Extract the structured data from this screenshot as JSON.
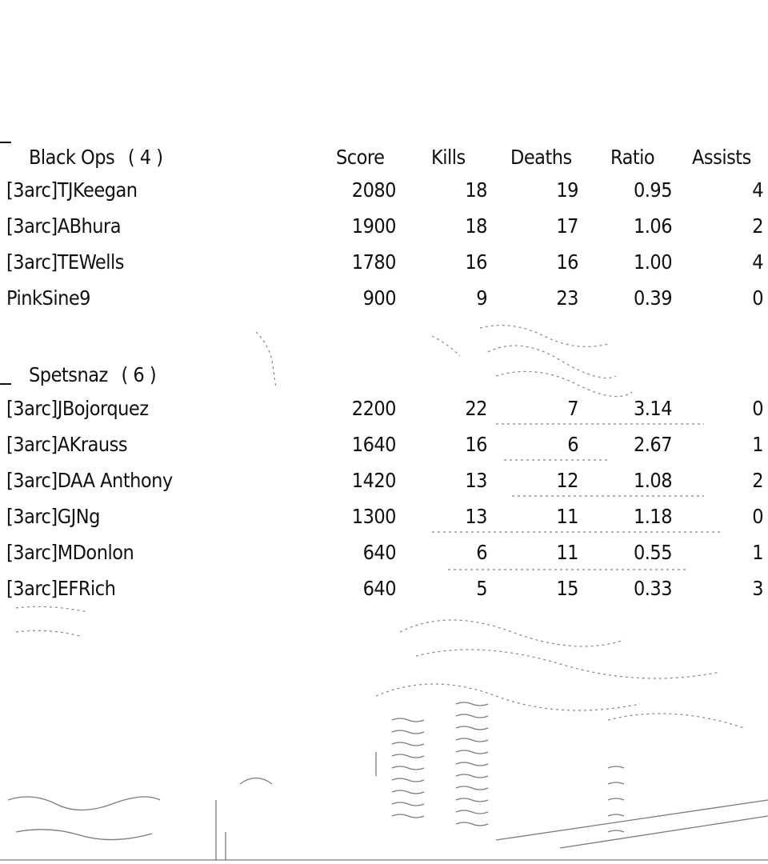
{
  "columns": {
    "score": "Score",
    "kills": "Kills",
    "deaths": "Deaths",
    "ratio": "Ratio",
    "assists": "Assists"
  },
  "teams": [
    {
      "name": "Black Ops",
      "count": "( 4 )",
      "players": [
        {
          "name": "[3arc]TJKeegan",
          "score": "2080",
          "kills": "18",
          "deaths": "19",
          "ratio": "0.95",
          "assists": "4"
        },
        {
          "name": "[3arc]ABhura",
          "score": "1900",
          "kills": "18",
          "deaths": "17",
          "ratio": "1.06",
          "assists": "2"
        },
        {
          "name": "[3arc]TEWells",
          "score": "1780",
          "kills": "16",
          "deaths": "16",
          "ratio": "1.00",
          "assists": "4"
        },
        {
          "name": "PinkSine9",
          "score": "900",
          "kills": "9",
          "deaths": "23",
          "ratio": "0.39",
          "assists": "0"
        }
      ]
    },
    {
      "name": "Spetsnaz",
      "count": "( 6 )",
      "players": [
        {
          "name": "[3arc]JBojorquez",
          "score": "2200",
          "kills": "22",
          "deaths": "7",
          "ratio": "3.14",
          "assists": "0"
        },
        {
          "name": "[3arc]AKrauss",
          "score": "1640",
          "kills": "16",
          "deaths": "6",
          "ratio": "2.67",
          "assists": "1"
        },
        {
          "name": "[3arc]DAA Anthony",
          "score": "1420",
          "kills": "13",
          "deaths": "12",
          "ratio": "1.08",
          "assists": "2"
        },
        {
          "name": "[3arc]GJNg",
          "score": "1300",
          "kills": "13",
          "deaths": "11",
          "ratio": "1.18",
          "assists": "0"
        },
        {
          "name": "[3arc]MDonlon",
          "score": "640",
          "kills": "6",
          "deaths": "11",
          "ratio": "0.55",
          "assists": "1"
        },
        {
          "name": "[3arc]EFRich",
          "score": "640",
          "kills": "5",
          "deaths": "15",
          "ratio": "0.33",
          "assists": "3"
        }
      ]
    }
  ],
  "colors": {
    "text": "#111111",
    "background": "#ffffff",
    "scene_lines": "#222222"
  }
}
